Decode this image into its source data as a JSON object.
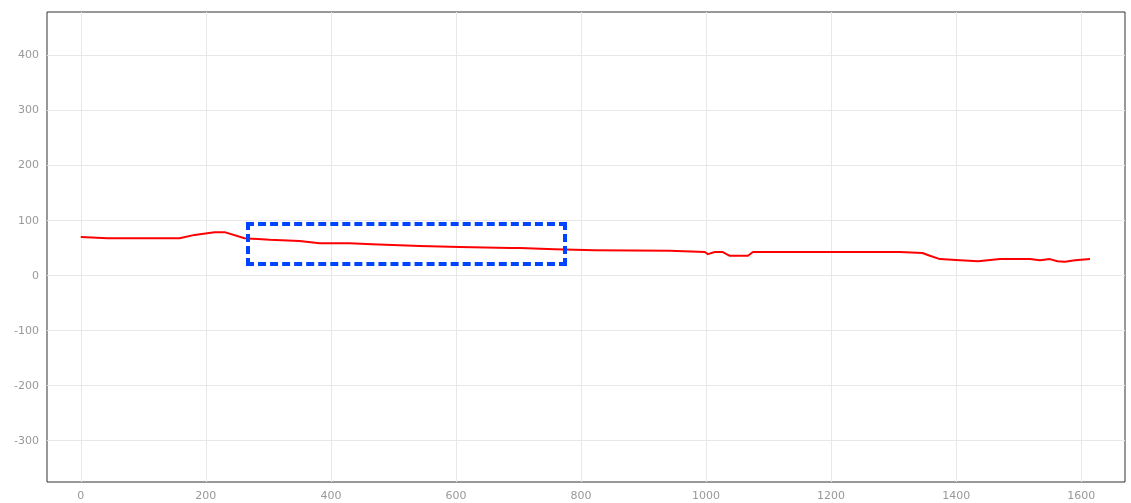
{
  "chart_data": {
    "type": "line",
    "xlim": [
      -54,
      1670
    ],
    "ylim": [
      -376,
      478
    ],
    "xticks": [
      0,
      200,
      400,
      600,
      800,
      1000,
      1200,
      1400,
      1600
    ],
    "yticks": [
      -300,
      -200,
      -100,
      0,
      100,
      200,
      300,
      400
    ],
    "grid": true,
    "marker": "none",
    "series": [
      {
        "color": "#ff0000",
        "x": [
          0,
          43,
          158,
          182,
          214,
          230,
          262,
          302,
          350,
          382,
          430,
          466,
          542,
          606,
          702,
          758,
          822,
          942,
          998,
          1003,
          1014,
          1026,
          1038,
          1067,
          1075,
          1310,
          1346,
          1358,
          1374,
          1406,
          1435,
          1470,
          1518,
          1534,
          1550,
          1562,
          1574,
          1590,
          1614
        ],
        "values": [
          69,
          67,
          67,
          73,
          78,
          78,
          67,
          64,
          62,
          58,
          58,
          56,
          53,
          51,
          49,
          47,
          45,
          44,
          42,
          38,
          42,
          42,
          35,
          35,
          42,
          42,
          40,
          35,
          29,
          27,
          25,
          29,
          29,
          27,
          29,
          25,
          24,
          27,
          29
        ]
      }
    ]
  }
}
